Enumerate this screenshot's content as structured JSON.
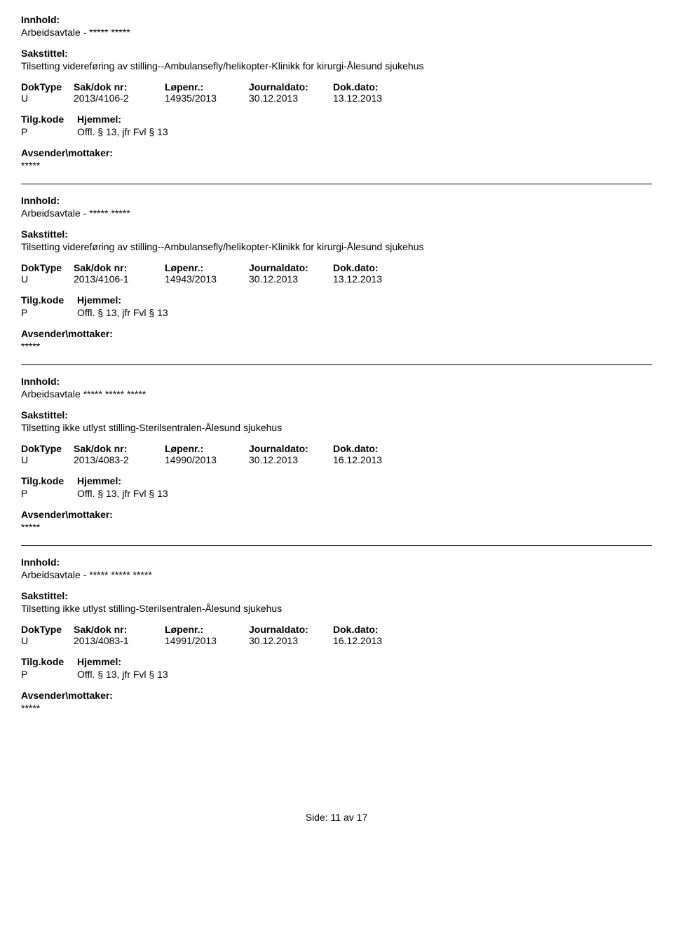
{
  "labels": {
    "innhold": "Innhold:",
    "sakstittel": "Sakstittel:",
    "doktype": "DokType",
    "sakdok": "Sak/dok nr:",
    "lopenr": "Løpenr.:",
    "journaldato": "Journaldato:",
    "dokdato": "Dok.dato:",
    "tilgkode": "Tilg.kode",
    "hjemmel": "Hjemmel:",
    "avsender": "Avsender\\mottaker:"
  },
  "records": [
    {
      "innhold": "Arbeidsavtale - ***** *****",
      "sakstittel": "Tilsetting videreføring av stilling--Ambulansefly/helikopter-Klinikk for kirurgi-Ålesund sjukehus",
      "doktype": "U",
      "sakdok": "2013/4106-2",
      "lopenr": "14935/2013",
      "journaldato": "30.12.2013",
      "dokdato": "13.12.2013",
      "tilgkode": "P",
      "hjemmel": "Offl. § 13, jfr Fvl § 13",
      "avsender": "*****"
    },
    {
      "innhold": "Arbeidsavtale - ***** *****",
      "sakstittel": "Tilsetting videreføring av stilling--Ambulansefly/helikopter-Klinikk for kirurgi-Ålesund sjukehus",
      "doktype": "U",
      "sakdok": "2013/4106-1",
      "lopenr": "14943/2013",
      "journaldato": "30.12.2013",
      "dokdato": "13.12.2013",
      "tilgkode": "P",
      "hjemmel": "Offl. § 13, jfr Fvl § 13",
      "avsender": "*****"
    },
    {
      "innhold": "Arbeidsavtale ***** ***** *****",
      "sakstittel": "Tilsetting ikke utlyst stilling-Sterilsentralen-Ålesund sjukehus",
      "doktype": "U",
      "sakdok": "2013/4083-2",
      "lopenr": "14990/2013",
      "journaldato": "30.12.2013",
      "dokdato": "16.12.2013",
      "tilgkode": "P",
      "hjemmel": "Offl. § 13, jfr Fvl § 13",
      "avsender": "*****"
    },
    {
      "innhold": "Arbeidsavtale - ***** ***** *****",
      "sakstittel": "Tilsetting ikke utlyst stilling-Sterilsentralen-Ålesund sjukehus",
      "doktype": "U",
      "sakdok": "2013/4083-1",
      "lopenr": "14991/2013",
      "journaldato": "30.12.2013",
      "dokdato": "16.12.2013",
      "tilgkode": "P",
      "hjemmel": "Offl. § 13, jfr Fvl § 13",
      "avsender": "*****"
    }
  ],
  "footer": {
    "prefix": "Side:",
    "current": "11",
    "sep": "av",
    "total": "17"
  }
}
